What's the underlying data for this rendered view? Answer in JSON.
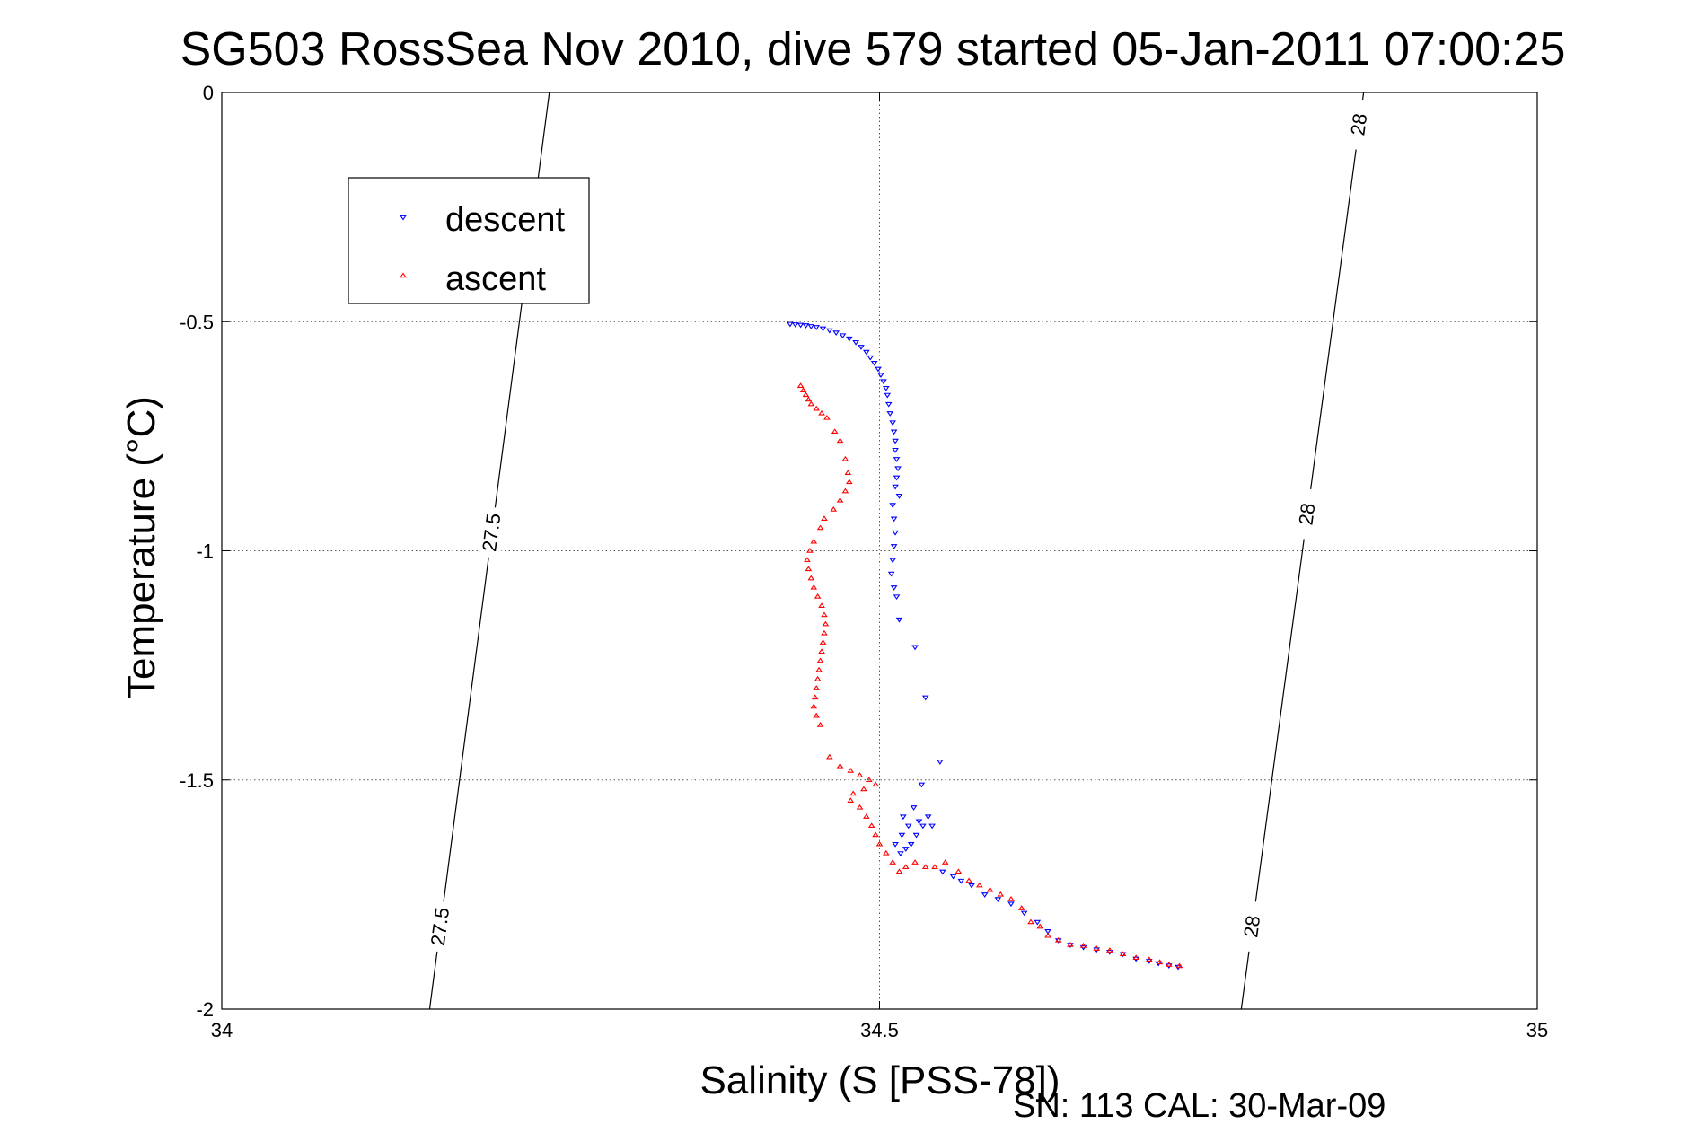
{
  "chart_data": {
    "type": "scatter",
    "title": "SG503 RossSea Nov 2010, dive 579 started 05-Jan-2011 07:00:25",
    "xlabel": "Salinity (S [PSS-78])",
    "ylabel": "Temperature (°C)",
    "footer": "SN: 113  CAL: 30-Mar-09",
    "xlim": [
      34,
      35
    ],
    "ylim": [
      -2,
      0
    ],
    "x_ticks": [
      "34",
      "34.5",
      "35"
    ],
    "y_ticks": [
      "0",
      "-0.5",
      "-1",
      "-1.5",
      "-2"
    ],
    "grid": true,
    "legend_position": "top-left",
    "series": [
      {
        "name": "descent",
        "marker": "down-triangle",
        "color": "#0000ff",
        "points": [
          [
            34.432,
            -0.505
          ],
          [
            34.436,
            -0.506
          ],
          [
            34.44,
            -0.507
          ],
          [
            34.444,
            -0.508
          ],
          [
            34.448,
            -0.51
          ],
          [
            34.452,
            -0.512
          ],
          [
            34.457,
            -0.515
          ],
          [
            34.462,
            -0.519
          ],
          [
            34.467,
            -0.524
          ],
          [
            34.472,
            -0.53
          ],
          [
            34.477,
            -0.537
          ],
          [
            34.482,
            -0.545
          ],
          [
            34.486,
            -0.555
          ],
          [
            34.49,
            -0.566
          ],
          [
            34.493,
            -0.578
          ],
          [
            34.496,
            -0.59
          ],
          [
            34.499,
            -0.603
          ],
          [
            34.501,
            -0.616
          ],
          [
            34.503,
            -0.63
          ],
          [
            34.505,
            -0.645
          ],
          [
            34.506,
            -0.66
          ],
          [
            34.507,
            -0.68
          ],
          [
            34.508,
            -0.7
          ],
          [
            34.51,
            -0.72
          ],
          [
            34.511,
            -0.74
          ],
          [
            34.512,
            -0.76
          ],
          [
            34.512,
            -0.78
          ],
          [
            34.513,
            -0.8
          ],
          [
            34.514,
            -0.82
          ],
          [
            34.513,
            -0.84
          ],
          [
            34.512,
            -0.86
          ],
          [
            34.515,
            -0.88
          ],
          [
            34.51,
            -0.9
          ],
          [
            34.511,
            -0.93
          ],
          [
            34.512,
            -0.96
          ],
          [
            34.511,
            -0.99
          ],
          [
            34.51,
            -1.02
          ],
          [
            34.509,
            -1.05
          ],
          [
            34.511,
            -1.08
          ],
          [
            34.513,
            -1.1
          ],
          [
            34.515,
            -1.15
          ],
          [
            34.527,
            -1.21
          ],
          [
            34.535,
            -1.32
          ],
          [
            34.546,
            -1.46
          ],
          [
            34.532,
            -1.51
          ],
          [
            34.526,
            -1.56
          ],
          [
            34.518,
            -1.58
          ],
          [
            34.53,
            -1.59
          ],
          [
            34.522,
            -1.6
          ],
          [
            34.517,
            -1.62
          ],
          [
            34.512,
            -1.64
          ],
          [
            34.516,
            -1.66
          ],
          [
            34.52,
            -1.65
          ],
          [
            34.524,
            -1.64
          ],
          [
            34.528,
            -1.62
          ],
          [
            34.533,
            -1.6
          ],
          [
            34.537,
            -1.58
          ],
          [
            34.54,
            -1.6
          ],
          [
            34.548,
            -1.7
          ],
          [
            34.556,
            -1.71
          ],
          [
            34.562,
            -1.72
          ],
          [
            34.57,
            -1.73
          ],
          [
            34.58,
            -1.75
          ],
          [
            34.59,
            -1.76
          ],
          [
            34.6,
            -1.77
          ],
          [
            34.61,
            -1.79
          ],
          [
            34.62,
            -1.81
          ],
          [
            34.628,
            -1.83
          ],
          [
            34.636,
            -1.85
          ],
          [
            34.645,
            -1.86
          ],
          [
            34.655,
            -1.865
          ],
          [
            34.665,
            -1.87
          ],
          [
            34.675,
            -1.875
          ],
          [
            34.685,
            -1.88
          ],
          [
            34.695,
            -1.89
          ],
          [
            34.705,
            -1.895
          ],
          [
            34.712,
            -1.9
          ],
          [
            34.72,
            -1.905
          ],
          [
            34.727,
            -1.908
          ]
        ]
      },
      {
        "name": "ascent",
        "marker": "up-triangle",
        "color": "#ff0000",
        "points": [
          [
            34.44,
            -0.64
          ],
          [
            34.442,
            -0.65
          ],
          [
            34.444,
            -0.66
          ],
          [
            34.446,
            -0.67
          ],
          [
            34.448,
            -0.68
          ],
          [
            34.452,
            -0.69
          ],
          [
            34.456,
            -0.7
          ],
          [
            34.46,
            -0.71
          ],
          [
            34.466,
            -0.74
          ],
          [
            34.47,
            -0.76
          ],
          [
            34.474,
            -0.8
          ],
          [
            34.476,
            -0.83
          ],
          [
            34.477,
            -0.85
          ],
          [
            34.474,
            -0.87
          ],
          [
            34.47,
            -0.89
          ],
          [
            34.465,
            -0.91
          ],
          [
            34.458,
            -0.93
          ],
          [
            34.455,
            -0.95
          ],
          [
            34.45,
            -0.98
          ],
          [
            34.447,
            -1.0
          ],
          [
            34.445,
            -1.02
          ],
          [
            34.446,
            -1.04
          ],
          [
            34.448,
            -1.06
          ],
          [
            34.45,
            -1.08
          ],
          [
            34.453,
            -1.1
          ],
          [
            34.456,
            -1.12
          ],
          [
            34.458,
            -1.14
          ],
          [
            34.459,
            -1.16
          ],
          [
            34.458,
            -1.18
          ],
          [
            34.457,
            -1.2
          ],
          [
            34.456,
            -1.22
          ],
          [
            34.455,
            -1.24
          ],
          [
            34.454,
            -1.26
          ],
          [
            34.453,
            -1.28
          ],
          [
            34.452,
            -1.3
          ],
          [
            34.451,
            -1.32
          ],
          [
            34.45,
            -1.34
          ],
          [
            34.452,
            -1.36
          ],
          [
            34.455,
            -1.38
          ],
          [
            34.462,
            -1.45
          ],
          [
            34.47,
            -1.47
          ],
          [
            34.478,
            -1.48
          ],
          [
            34.485,
            -1.49
          ],
          [
            34.492,
            -1.5
          ],
          [
            34.497,
            -1.51
          ],
          [
            34.488,
            -1.52
          ],
          [
            34.48,
            -1.53
          ],
          [
            34.478,
            -1.545
          ],
          [
            34.485,
            -1.56
          ],
          [
            34.49,
            -1.58
          ],
          [
            34.494,
            -1.6
          ],
          [
            34.497,
            -1.62
          ],
          [
            34.5,
            -1.64
          ],
          [
            34.505,
            -1.66
          ],
          [
            34.51,
            -1.68
          ],
          [
            34.515,
            -1.7
          ],
          [
            34.52,
            -1.69
          ],
          [
            34.527,
            -1.68
          ],
          [
            34.535,
            -1.69
          ],
          [
            34.542,
            -1.69
          ],
          [
            34.55,
            -1.68
          ],
          [
            34.56,
            -1.7
          ],
          [
            34.568,
            -1.72
          ],
          [
            34.576,
            -1.73
          ],
          [
            34.584,
            -1.74
          ],
          [
            34.592,
            -1.75
          ],
          [
            34.6,
            -1.76
          ],
          [
            34.608,
            -1.78
          ],
          [
            34.615,
            -1.81
          ],
          [
            34.622,
            -1.82
          ],
          [
            34.628,
            -1.84
          ],
          [
            34.636,
            -1.85
          ],
          [
            34.645,
            -1.86
          ],
          [
            34.655,
            -1.862
          ],
          [
            34.665,
            -1.868
          ],
          [
            34.675,
            -1.872
          ],
          [
            34.685,
            -1.88
          ],
          [
            34.695,
            -1.888
          ],
          [
            34.705,
            -1.892
          ],
          [
            34.713,
            -1.898
          ],
          [
            34.72,
            -1.903
          ],
          [
            34.728,
            -1.906
          ]
        ]
      }
    ],
    "contours": [
      {
        "label": "27.5",
        "line": [
          [
            34.158,
            -2
          ],
          [
            34.249,
            0
          ]
        ],
        "labels_at_y": [
          -0.96,
          -1.82
        ]
      },
      {
        "label": "28",
        "line": [
          [
            34.775,
            -2
          ],
          [
            34.868,
            0
          ]
        ],
        "labels_at_y": [
          -0.07,
          -0.92,
          -1.82
        ]
      }
    ]
  }
}
